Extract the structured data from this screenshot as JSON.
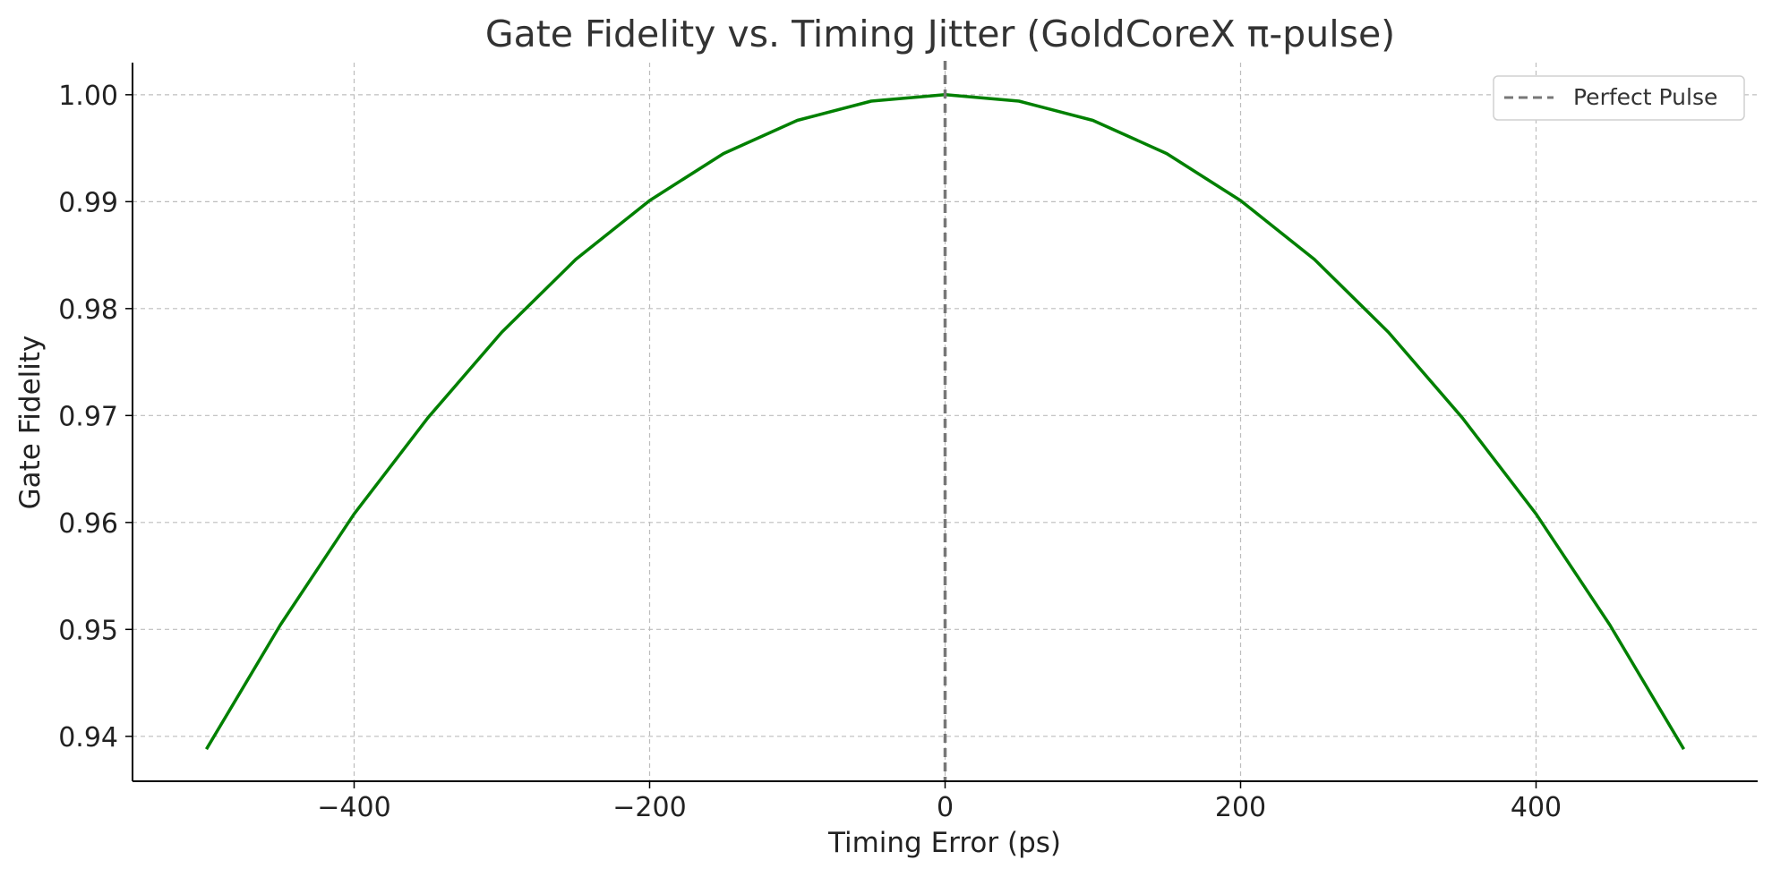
{
  "chart_data": {
    "type": "line",
    "title": "Gate Fidelity vs. Timing Jitter (GoldCoreX π-pulse)",
    "xlabel": "Timing Error (ps)",
    "ylabel": "Gate Fidelity",
    "xlim": [
      -550,
      550
    ],
    "ylim": [
      0.9358,
      1.003
    ],
    "x_ticks": [
      -400,
      -200,
      0,
      200,
      400
    ],
    "x_tick_labels": [
      "−400",
      "−200",
      "0",
      "200",
      "400"
    ],
    "y_ticks": [
      0.94,
      0.95,
      0.96,
      0.97,
      0.98,
      0.99,
      1.0
    ],
    "y_tick_labels": [
      "0.94",
      "0.95",
      "0.96",
      "0.97",
      "0.98",
      "0.99",
      "1.00"
    ],
    "grid": true,
    "legend_position": "top-right",
    "series": [
      {
        "color": "#008000",
        "style": "solid",
        "x": [
          -500,
          -450,
          -400,
          -350,
          -300,
          -250,
          -200,
          -150,
          -100,
          -50,
          0,
          50,
          100,
          150,
          200,
          250,
          300,
          350,
          400,
          450,
          500
        ],
        "y": [
          0.9388,
          0.9504,
          0.9608,
          0.9698,
          0.9778,
          0.9846,
          0.9901,
          0.9945,
          0.9976,
          0.9994,
          1.0,
          0.9994,
          0.9976,
          0.9945,
          0.9901,
          0.9846,
          0.9778,
          0.9698,
          0.9608,
          0.9504,
          0.9388
        ]
      }
    ],
    "reference_lines": [
      {
        "name": "Perfect Pulse",
        "orientation": "vertical",
        "x": 0,
        "color": "#777777",
        "style": "dashed"
      }
    ]
  }
}
